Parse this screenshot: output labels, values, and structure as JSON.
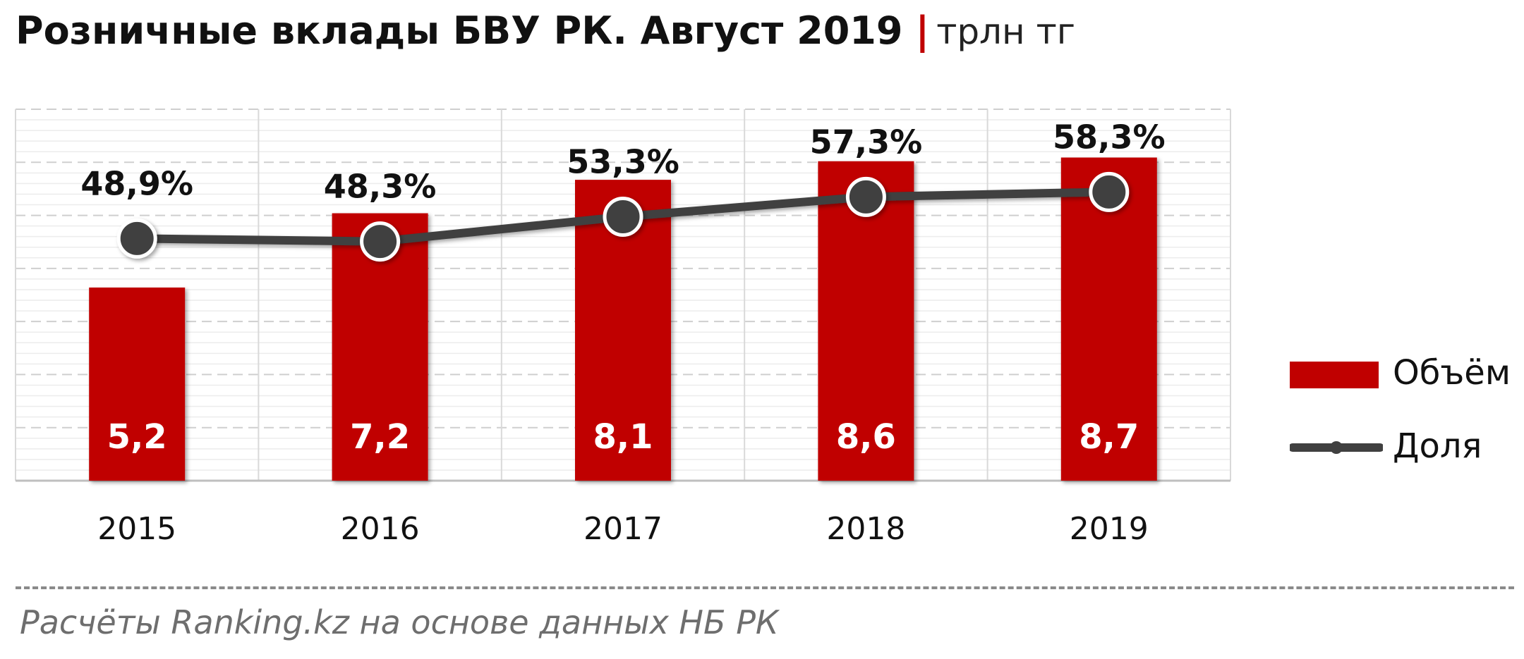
{
  "title": {
    "main": "Розничные вклады БВУ РК. Август 2019",
    "separator": "|",
    "unit": "трлн тг"
  },
  "legend": {
    "bar_label": "Объём",
    "line_label": "Доля"
  },
  "source": "Расчёты Ranking.kz на основе данных НБ РК",
  "colors": {
    "bar": "#c00000",
    "line": "#404040",
    "marker": "#404040",
    "grid": "#d9d9d9"
  },
  "chart_data": {
    "type": "bar",
    "categories": [
      "2015",
      "2016",
      "2017",
      "2018",
      "2019"
    ],
    "series": [
      {
        "name": "Объём",
        "type": "bar",
        "values": [
          5.2,
          7.2,
          8.1,
          8.6,
          8.7
        ],
        "labels": [
          "5,2",
          "7,2",
          "8,1",
          "8,6",
          "8,7"
        ]
      },
      {
        "name": "Доля",
        "type": "line",
        "values": [
          48.9,
          48.3,
          53.3,
          57.3,
          58.3
        ],
        "labels": [
          "48,9%",
          "48,3%",
          "53,3%",
          "57,3%",
          "58,3%"
        ]
      }
    ],
    "ylim": [
      0,
      10
    ],
    "y2lim": [
      0,
      75
    ],
    "grid": true,
    "legend_position": "right"
  }
}
